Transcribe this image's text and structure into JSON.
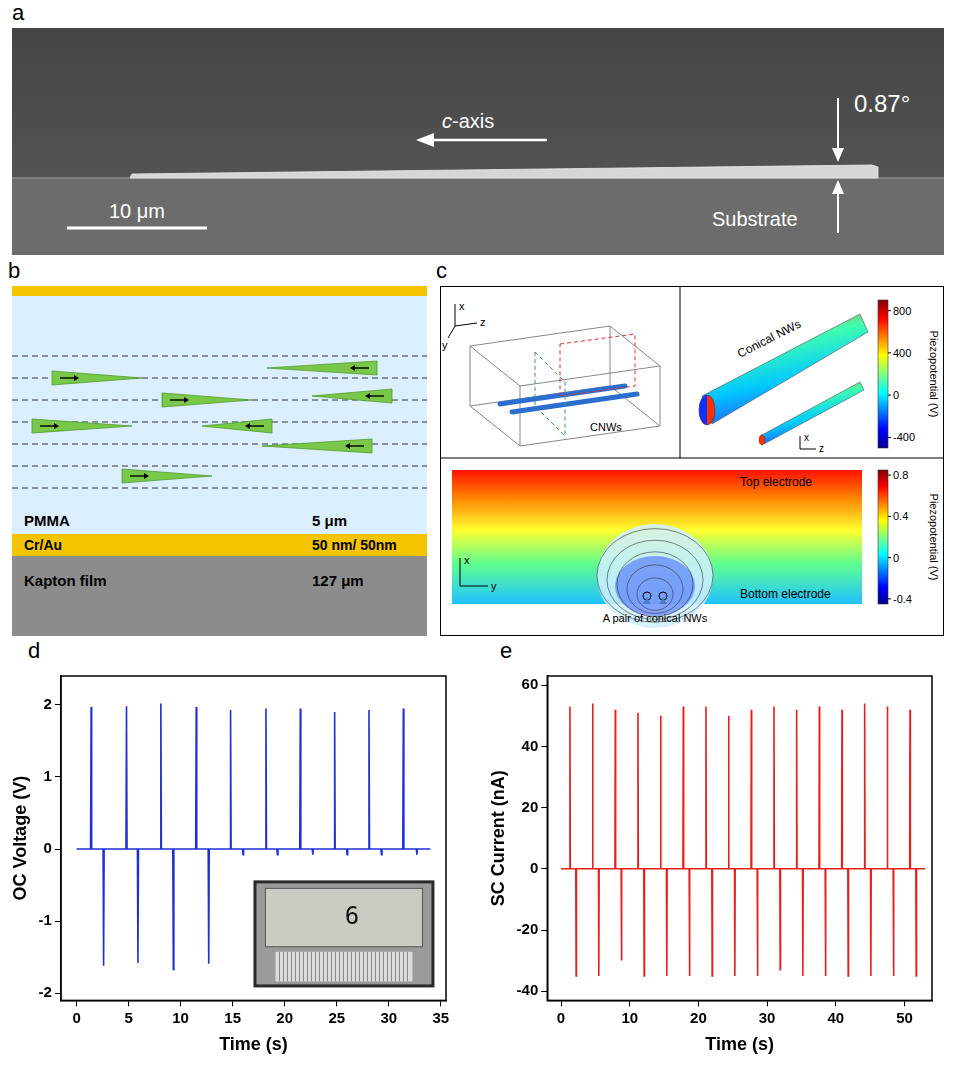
{
  "figure": {
    "a": {
      "panel": "a",
      "axis_label": "c-axis",
      "angle": "0.87°",
      "scale_bar": "10 μm",
      "substrate": "Substrate"
    },
    "b": {
      "panel": "b",
      "layers": [
        {
          "name": "PMMA",
          "thickness": "5 μm"
        },
        {
          "name": "Cr/Au",
          "thickness": "50 nm/ 50nm"
        },
        {
          "name": "Kapton film",
          "thickness": "127 μm"
        }
      ]
    },
    "c": {
      "panel": "c",
      "axes": [
        "x",
        "y",
        "z"
      ],
      "schematic_label": "CNWs",
      "upper_title": "Conical NWs",
      "upper_colorbar": {
        "title": "Piezopotential (V)",
        "range": [
          -500,
          900
        ],
        "ticks": [
          800,
          400,
          0,
          -400
        ]
      },
      "lower_colorbar": {
        "title": "Piezopotential (V)",
        "range": [
          -0.45,
          0.85
        ],
        "ticks": [
          0.8,
          0.4,
          0,
          -0.4
        ]
      },
      "top_electrode": "Top electrode",
      "bottom_electrode": "Bottom electrode",
      "pair_label": "A pair of conical NWs"
    }
  },
  "chart_data": [
    {
      "panel": "d",
      "type": "line",
      "color": "#1f2fd6",
      "x_label": "Time (s)",
      "y_label": "OC Voltage (V)",
      "xlim": [
        -1.5,
        35.5
      ],
      "ylim": [
        -2.1,
        2.4
      ],
      "xticks": [
        0,
        5,
        10,
        15,
        20,
        25,
        30,
        35
      ],
      "yticks": [
        -2,
        -1,
        0,
        1,
        2
      ],
      "grid": false,
      "inset_text": "6",
      "x": [
        0,
        1.35,
        1.4,
        1.45,
        2.55,
        2.6,
        2.65,
        4.75,
        4.8,
        4.85,
        5.85,
        5.9,
        5.95,
        8.05,
        8.1,
        8.15,
        9.25,
        9.3,
        9.35,
        11.45,
        11.5,
        11.55,
        12.65,
        12.7,
        12.75,
        14.75,
        14.8,
        14.85,
        15.95,
        16.0,
        16.05,
        18.15,
        18.2,
        18.25,
        19.25,
        19.3,
        19.35,
        21.45,
        21.5,
        21.55,
        22.65,
        22.7,
        22.75,
        24.75,
        24.8,
        24.85,
        25.95,
        26.0,
        26.05,
        28.05,
        28.1,
        28.15,
        29.25,
        29.3,
        29.35,
        31.35,
        31.4,
        31.45,
        32.65,
        32.7,
        32.75,
        34
      ],
      "values": [
        0,
        0,
        1.97,
        0,
        0,
        -1.62,
        0,
        0,
        1.98,
        0,
        0,
        -1.58,
        0,
        0,
        2.02,
        0,
        0,
        -1.67,
        0,
        0,
        1.97,
        0,
        0,
        -1.59,
        0,
        0,
        1.93,
        0,
        0,
        -0.08,
        0,
        0,
        1.95,
        0,
        0,
        -0.08,
        0,
        0,
        1.95,
        0,
        0,
        -0.08,
        0,
        0,
        1.9,
        0,
        0,
        -0.08,
        0,
        0,
        1.93,
        0,
        0,
        -0.08,
        0,
        0,
        1.95,
        0,
        0,
        -0.08,
        0,
        0
      ]
    },
    {
      "panel": "e",
      "type": "line",
      "color": "#e8201c",
      "x_label": "Time (s)",
      "y_label": "SC Current (nA)",
      "xlim": [
        -2,
        54
      ],
      "ylim": [
        -43,
        63
      ],
      "xticks": [
        0,
        10,
        20,
        30,
        40,
        50
      ],
      "yticks": [
        -40,
        -20,
        0,
        20,
        40,
        60
      ],
      "grid": false,
      "x": [
        0,
        1.25,
        1.3,
        1.35,
        2.15,
        2.2,
        2.25,
        4.55,
        4.6,
        4.65,
        5.45,
        5.5,
        5.55,
        7.85,
        7.9,
        7.95,
        8.75,
        8.8,
        8.85,
        11.15,
        11.2,
        11.25,
        12.05,
        12.1,
        12.15,
        14.45,
        14.5,
        14.55,
        15.35,
        15.4,
        15.45,
        17.75,
        17.8,
        17.85,
        18.65,
        18.7,
        18.75,
        21.05,
        21.1,
        21.15,
        21.95,
        22.0,
        22.05,
        24.35,
        24.4,
        24.45,
        25.25,
        25.3,
        25.35,
        27.65,
        27.7,
        27.75,
        28.55,
        28.6,
        28.65,
        30.95,
        31.0,
        31.05,
        31.85,
        31.9,
        31.95,
        34.25,
        34.3,
        34.35,
        35.15,
        35.2,
        35.25,
        37.55,
        37.6,
        37.65,
        38.45,
        38.5,
        38.55,
        40.85,
        40.9,
        40.95,
        41.75,
        41.8,
        41.85,
        44.15,
        44.2,
        44.25,
        45.05,
        45.1,
        45.15,
        47.45,
        47.5,
        47.55,
        48.35,
        48.4,
        48.45,
        50.75,
        50.8,
        50.85,
        51.65,
        51.7,
        51.75,
        53
      ],
      "values": [
        0,
        0,
        53,
        0,
        0,
        -35,
        0,
        0,
        54,
        0,
        0,
        -35,
        0,
        0,
        52,
        0,
        0,
        -30,
        0,
        0,
        51,
        0,
        0,
        -35,
        0,
        0,
        50,
        0,
        0,
        -35,
        0,
        0,
        53,
        0,
        0,
        -35,
        0,
        0,
        53,
        0,
        0,
        -35,
        0,
        0,
        50,
        0,
        0,
        -35,
        0,
        0,
        52,
        0,
        0,
        -35,
        0,
        0,
        53,
        0,
        0,
        -33,
        0,
        0,
        52,
        0,
        0,
        -35,
        0,
        0,
        53,
        0,
        0,
        -35,
        0,
        0,
        52,
        0,
        0,
        -35,
        0,
        0,
        54,
        0,
        0,
        -35,
        0,
        0,
        53,
        0,
        0,
        -35,
        0,
        0,
        52,
        0,
        0,
        -35,
        0,
        0
      ]
    }
  ]
}
